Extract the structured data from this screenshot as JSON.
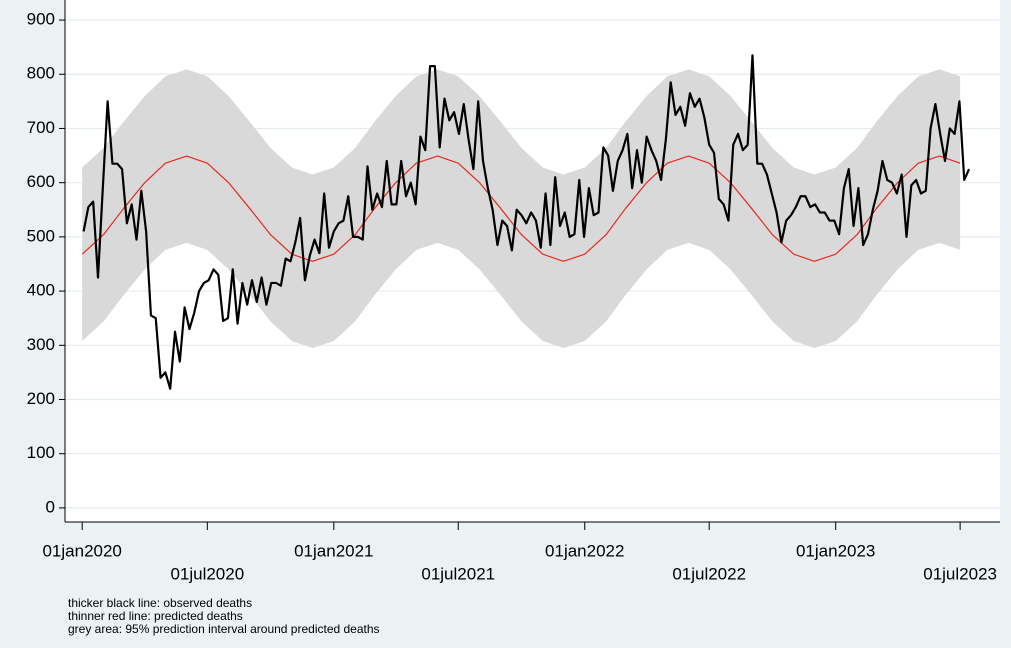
{
  "chart_data": {
    "type": "line",
    "notes": [
      "thicker black line: observed deaths",
      "thinner red line: predicted deaths",
      "grey area: 95% prediction interval around predicted deaths"
    ],
    "xlim": [
      "2019-12-07",
      "2023-08-28"
    ],
    "xticks": [
      {
        "value": "2020-01-01",
        "label": "01jan2020"
      },
      {
        "value": "2020-07-01",
        "label": "01jul2020"
      },
      {
        "value": "2021-01-01",
        "label": "01jan2021"
      },
      {
        "value": "2021-07-01",
        "label": "01jul2021"
      },
      {
        "value": "2022-01-01",
        "label": "01jan2022"
      },
      {
        "value": "2022-07-01",
        "label": "01jul2022"
      },
      {
        "value": "2023-01-01",
        "label": "01jan2023"
      },
      {
        "value": "2023-07-01",
        "label": "01jul2023"
      }
    ],
    "ylim": [
      -26,
      937
    ],
    "yticks": [
      0,
      100,
      200,
      300,
      400,
      500,
      600,
      700,
      800,
      900
    ],
    "grid": true,
    "interval": {
      "color": "#d9d9d9",
      "lower": [
        308,
        344,
        392,
        440,
        476,
        489,
        476,
        440,
        392,
        344,
        308,
        295,
        308,
        344,
        392,
        440,
        476,
        489,
        476,
        440,
        392,
        344,
        308,
        295,
        308,
        344,
        392,
        440,
        476,
        489,
        476,
        440,
        392,
        344,
        308,
        295,
        308,
        344,
        392,
        440,
        476,
        489,
        476
      ],
      "upper": [
        628,
        664,
        712,
        760,
        796,
        809,
        796,
        760,
        712,
        664,
        628,
        615,
        628,
        664,
        712,
        760,
        796,
        809,
        796,
        760,
        712,
        664,
        628,
        615,
        628,
        664,
        712,
        760,
        796,
        809,
        796,
        760,
        712,
        664,
        628,
        615,
        628,
        664,
        712,
        760,
        796,
        809,
        796
      ]
    },
    "predicted": {
      "color": "#e8281e",
      "x": [
        "2020-01-01",
        "2020-02-01",
        "2020-03-01",
        "2020-04-01",
        "2020-05-01",
        "2020-06-01",
        "2020-07-01",
        "2020-08-01",
        "2020-09-01",
        "2020-10-01",
        "2020-11-01",
        "2020-12-01",
        "2021-01-01",
        "2021-02-01",
        "2021-03-01",
        "2021-04-01",
        "2021-05-01",
        "2021-06-01",
        "2021-07-01",
        "2021-08-01",
        "2021-09-01",
        "2021-10-01",
        "2021-11-01",
        "2021-12-01",
        "2022-01-01",
        "2022-02-01",
        "2022-03-01",
        "2022-04-01",
        "2022-05-01",
        "2022-06-01",
        "2022-07-01",
        "2022-08-01",
        "2022-09-01",
        "2022-10-01",
        "2022-11-01",
        "2022-12-01",
        "2023-01-01",
        "2023-02-01",
        "2023-03-01",
        "2023-04-01",
        "2023-05-01",
        "2023-06-01",
        "2023-07-01"
      ],
      "values": [
        468,
        504,
        552,
        600,
        636,
        649,
        636,
        600,
        552,
        504,
        468,
        455,
        468,
        504,
        552,
        600,
        636,
        649,
        636,
        600,
        552,
        504,
        468,
        455,
        468,
        504,
        552,
        600,
        636,
        649,
        636,
        600,
        552,
        504,
        468,
        455,
        468,
        504,
        552,
        600,
        636,
        649,
        636
      ]
    },
    "observed": {
      "color": "#000000",
      "x": [
        "2020-01-03",
        "2020-01-10",
        "2020-01-17",
        "2020-01-24",
        "2020-01-31",
        "2020-02-07",
        "2020-02-14",
        "2020-02-21",
        "2020-02-28",
        "2020-03-06",
        "2020-03-13",
        "2020-03-20",
        "2020-03-27",
        "2020-04-03",
        "2020-04-10",
        "2020-04-17",
        "2020-04-24",
        "2020-05-01",
        "2020-05-08",
        "2020-05-15",
        "2020-05-22",
        "2020-05-29",
        "2020-06-05",
        "2020-06-12",
        "2020-06-19",
        "2020-06-26",
        "2020-07-03",
        "2020-07-10",
        "2020-07-17",
        "2020-07-24",
        "2020-07-31",
        "2020-08-07",
        "2020-08-14",
        "2020-08-21",
        "2020-08-28",
        "2020-09-04",
        "2020-09-11",
        "2020-09-18",
        "2020-09-25",
        "2020-10-02",
        "2020-10-09",
        "2020-10-16",
        "2020-10-23",
        "2020-10-30",
        "2020-11-06",
        "2020-11-13",
        "2020-11-20",
        "2020-11-27",
        "2020-12-04",
        "2020-12-11",
        "2020-12-18",
        "2020-12-25",
        "2021-01-01",
        "2021-01-08",
        "2021-01-15",
        "2021-01-22",
        "2021-01-29",
        "2021-02-05",
        "2021-02-12",
        "2021-02-19",
        "2021-02-26",
        "2021-03-05",
        "2021-03-12",
        "2021-03-19",
        "2021-03-26",
        "2021-04-02",
        "2021-04-09",
        "2021-04-16",
        "2021-04-23",
        "2021-04-30",
        "2021-05-07",
        "2021-05-14",
        "2021-05-21",
        "2021-05-28",
        "2021-06-04",
        "2021-06-11",
        "2021-06-18",
        "2021-06-25",
        "2021-07-02",
        "2021-07-09",
        "2021-07-16",
        "2021-07-23",
        "2021-07-30",
        "2021-08-06",
        "2021-08-13",
        "2021-08-20",
        "2021-08-27",
        "2021-09-03",
        "2021-09-10",
        "2021-09-17",
        "2021-09-24",
        "2021-10-01",
        "2021-10-08",
        "2021-10-15",
        "2021-10-22",
        "2021-10-29",
        "2021-11-05",
        "2021-11-12",
        "2021-11-19",
        "2021-11-26",
        "2021-12-03",
        "2021-12-10",
        "2021-12-17",
        "2021-12-24",
        "2021-12-31",
        "2022-01-07",
        "2022-01-14",
        "2022-01-21",
        "2022-01-28",
        "2022-02-04",
        "2022-02-11",
        "2022-02-18",
        "2022-02-25",
        "2022-03-04",
        "2022-03-11",
        "2022-03-18",
        "2022-03-25",
        "2022-04-01",
        "2022-04-08",
        "2022-04-15",
        "2022-04-22",
        "2022-04-29",
        "2022-05-06",
        "2022-05-13",
        "2022-05-20",
        "2022-05-27",
        "2022-06-03",
        "2022-06-10",
        "2022-06-17",
        "2022-06-24",
        "2022-07-01",
        "2022-07-08",
        "2022-07-15",
        "2022-07-22",
        "2022-07-29",
        "2022-08-05",
        "2022-08-12",
        "2022-08-19",
        "2022-08-26",
        "2022-09-02",
        "2022-09-09",
        "2022-09-16",
        "2022-09-23",
        "2022-09-30",
        "2022-10-07",
        "2022-10-14",
        "2022-10-21",
        "2022-10-28",
        "2022-11-04",
        "2022-11-11",
        "2022-11-18",
        "2022-11-25",
        "2022-12-02",
        "2022-12-09",
        "2022-12-16",
        "2022-12-23",
        "2022-12-30",
        "2023-01-06",
        "2023-01-13",
        "2023-01-20",
        "2023-01-27",
        "2023-02-03",
        "2023-02-10",
        "2023-02-17",
        "2023-02-24",
        "2023-03-03",
        "2023-03-10",
        "2023-03-17",
        "2023-03-24",
        "2023-03-31",
        "2023-04-07",
        "2023-04-14",
        "2023-04-21",
        "2023-04-28",
        "2023-05-05",
        "2023-05-12",
        "2023-05-19",
        "2023-05-26",
        "2023-06-02",
        "2023-06-09",
        "2023-06-16",
        "2023-06-23",
        "2023-06-30",
        "2023-07-07",
        "2023-07-14"
      ],
      "values": [
        510,
        555,
        565,
        425,
        590,
        750,
        635,
        635,
        625,
        525,
        560,
        495,
        585,
        510,
        355,
        350,
        240,
        250,
        220,
        325,
        270,
        370,
        330,
        360,
        400,
        415,
        420,
        440,
        430,
        345,
        350,
        440,
        340,
        415,
        375,
        420,
        380,
        425,
        375,
        415,
        415,
        410,
        460,
        455,
        490,
        535,
        420,
        465,
        495,
        470,
        580,
        480,
        510,
        525,
        530,
        575,
        500,
        500,
        495,
        630,
        550,
        580,
        555,
        640,
        560,
        560,
        640,
        575,
        600,
        560,
        685,
        660,
        815,
        815,
        665,
        755,
        715,
        730,
        690,
        745,
        680,
        625,
        750,
        640,
        590,
        550,
        485,
        530,
        520,
        475,
        550,
        540,
        525,
        545,
        530,
        480,
        580,
        485,
        610,
        520,
        545,
        500,
        505,
        605,
        500,
        590,
        540,
        545,
        665,
        650,
        585,
        640,
        660,
        690,
        590,
        660,
        600,
        685,
        660,
        640,
        605,
        680,
        785,
        725,
        740,
        705,
        765,
        740,
        755,
        720,
        670,
        655,
        570,
        560,
        530,
        670,
        690,
        660,
        670,
        835,
        635,
        635,
        615,
        580,
        545,
        490,
        530,
        540,
        555,
        575,
        575,
        555,
        560,
        545,
        545,
        530,
        530,
        505,
        590,
        625,
        520,
        590,
        485,
        505,
        550,
        585,
        640,
        605,
        600,
        580,
        615,
        500,
        595,
        605,
        580,
        585,
        700,
        745,
        690,
        640,
        700,
        690,
        750,
        605,
        625
      ]
    }
  }
}
